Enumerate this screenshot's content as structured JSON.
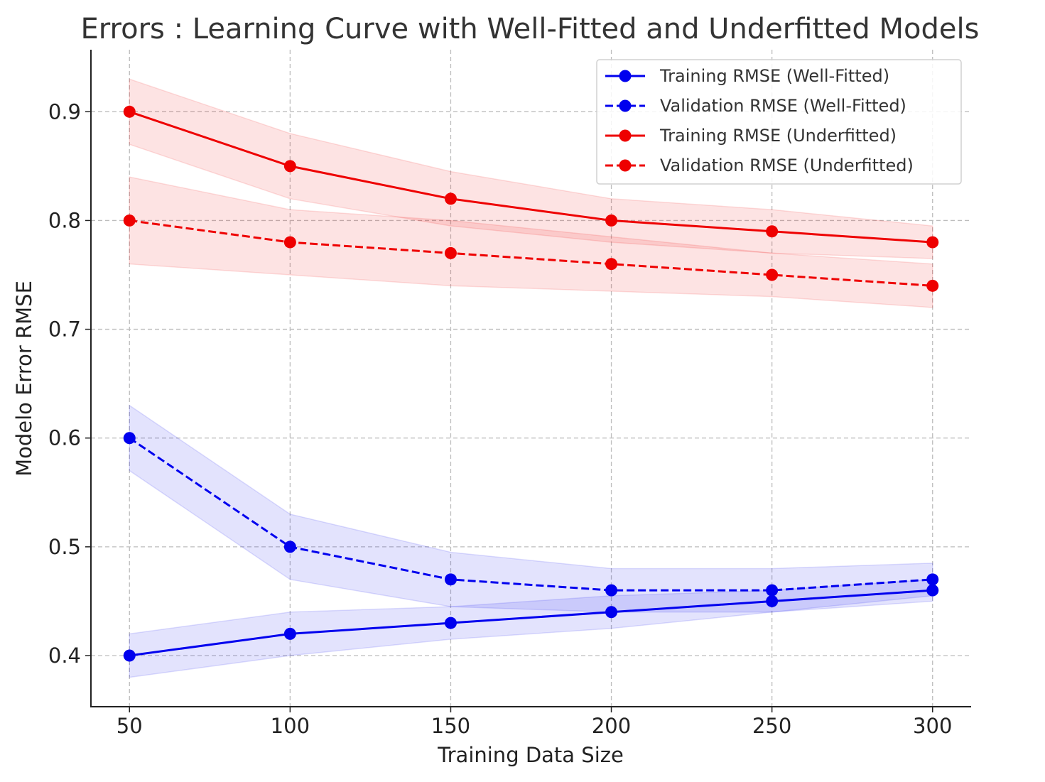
{
  "chart_data": {
    "type": "line",
    "title": "Errors : Learning Curve with Well-Fitted and Underfitted Models",
    "xlabel": "Training Data Size",
    "ylabel": "Modelo Error RMSE",
    "x": [
      50,
      100,
      150,
      200,
      250,
      300
    ],
    "xticks": [
      "50",
      "100",
      "150",
      "200",
      "250",
      "300"
    ],
    "yticks": [
      "0.4",
      "0.5",
      "0.6",
      "0.7",
      "0.8",
      "0.9"
    ],
    "xlim": [
      38,
      312
    ],
    "ylim": [
      0.353,
      0.957
    ],
    "grid": true,
    "legend_position": "top-right",
    "series": [
      {
        "name": "Training RMSE (Well-Fitted)",
        "color": "#0000ee",
        "linestyle": "solid",
        "values": [
          0.4,
          0.42,
          0.43,
          0.44,
          0.45,
          0.46
        ],
        "band_lower": [
          0.38,
          0.4,
          0.415,
          0.425,
          0.44,
          0.45
        ],
        "band_upper": [
          0.42,
          0.44,
          0.445,
          0.455,
          0.46,
          0.47
        ]
      },
      {
        "name": "Validation RMSE (Well-Fitted)",
        "color": "#0000ee",
        "linestyle": "dashed",
        "values": [
          0.6,
          0.5,
          0.47,
          0.46,
          0.46,
          0.47
        ],
        "band_lower": [
          0.57,
          0.47,
          0.445,
          0.44,
          0.44,
          0.455
        ],
        "band_upper": [
          0.63,
          0.53,
          0.495,
          0.48,
          0.48,
          0.485
        ]
      },
      {
        "name": "Training RMSE (Underfitted)",
        "color": "#ee0000",
        "linestyle": "solid",
        "values": [
          0.9,
          0.85,
          0.82,
          0.8,
          0.79,
          0.78
        ],
        "band_lower": [
          0.87,
          0.82,
          0.795,
          0.78,
          0.77,
          0.765
        ],
        "band_upper": [
          0.93,
          0.88,
          0.845,
          0.82,
          0.81,
          0.795
        ]
      },
      {
        "name": "Validation RMSE (Underfitted)",
        "color": "#ee0000",
        "linestyle": "dashed",
        "values": [
          0.8,
          0.78,
          0.77,
          0.76,
          0.75,
          0.74
        ],
        "band_lower": [
          0.76,
          0.75,
          0.74,
          0.735,
          0.73,
          0.72
        ],
        "band_upper": [
          0.84,
          0.81,
          0.8,
          0.785,
          0.77,
          0.76
        ]
      }
    ]
  }
}
